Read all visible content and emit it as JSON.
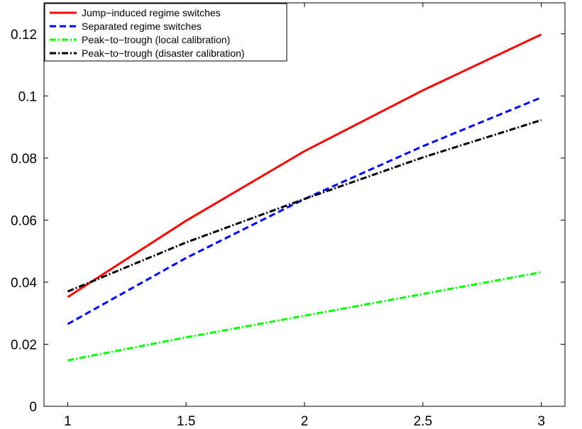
{
  "chart_data": {
    "type": "line",
    "title": "",
    "xlabel": "",
    "ylabel": "",
    "xlim": [
      0.9,
      3.1
    ],
    "ylim": [
      0,
      0.13
    ],
    "grid": false,
    "legend_position": "top-left",
    "xticks": [
      1,
      1.5,
      2,
      2.5,
      3
    ],
    "xtick_labels": [
      "1",
      "1.5",
      "2",
      "2.5",
      "3"
    ],
    "yticks": [
      0,
      0.02,
      0.04,
      0.06,
      0.08,
      0.1,
      0.12
    ],
    "ytick_labels": [
      "0",
      "0.02",
      "0.04",
      "0.06",
      "0.08",
      "0.1",
      "0.12"
    ],
    "series": [
      {
        "name": "Jump−induced regime switches",
        "color": "#ff0000",
        "style": "solid",
        "x": [
          1,
          1.5,
          2,
          2.5,
          3
        ],
        "y": [
          0.0352,
          0.0598,
          0.0822,
          0.1018,
          0.1198
        ]
      },
      {
        "name": "Separated regime switches",
        "color": "#0000ff",
        "style": "dashed",
        "x": [
          1,
          1.5,
          2,
          2.5,
          3
        ],
        "y": [
          0.0265,
          0.0478,
          0.0668,
          0.0838,
          0.0995
        ]
      },
      {
        "name": "Peak−to−trough (local calibration)",
        "color": "#00ff00",
        "style": "dashdot",
        "x": [
          1,
          1.5,
          2,
          2.5,
          3
        ],
        "y": [
          0.0148,
          0.0222,
          0.0292,
          0.0362,
          0.0432
        ]
      },
      {
        "name": "Peak−to−trough (disaster calibration)",
        "color": "#000000",
        "style": "dashdot",
        "x": [
          1,
          1.5,
          2,
          2.5,
          3
        ],
        "y": [
          0.037,
          0.0528,
          0.0668,
          0.0802,
          0.0922
        ]
      }
    ]
  }
}
